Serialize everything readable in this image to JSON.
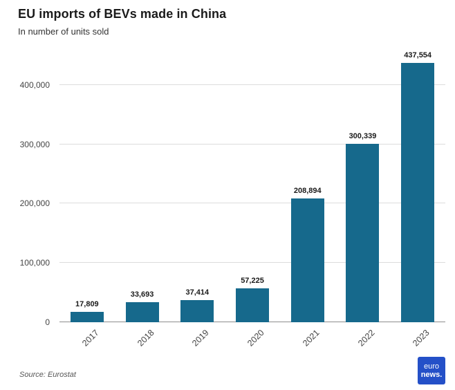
{
  "header": {
    "title": "EU imports of BEVs made in China",
    "subtitle": "In number of units sold"
  },
  "chart_data": {
    "type": "bar",
    "title": "EU imports of BEVs made in China",
    "subtitle": "In number of units sold",
    "categories": [
      "2017",
      "2018",
      "2019",
      "2020",
      "2021",
      "2022",
      "2023"
    ],
    "values": [
      17809,
      33693,
      37414,
      57225,
      208894,
      300339,
      437554
    ],
    "value_labels": [
      "17,809",
      "33,693",
      "37,414",
      "57,225",
      "208,894",
      "300,339",
      "437,554"
    ],
    "xlabel": "",
    "ylabel": "",
    "ylim": [
      0,
      443000
    ],
    "yticks": [
      0,
      100000,
      200000,
      300000,
      400000
    ],
    "ytick_labels": [
      "0",
      "100,000",
      "200,000",
      "300,000",
      "400,000"
    ],
    "grid": true,
    "legend": false,
    "bar_color": "#16698c"
  },
  "footer": {
    "source": "Source: Eurostat",
    "logo": {
      "line1": "euro",
      "line2": "news.",
      "bg_color": "#2450c8"
    }
  }
}
